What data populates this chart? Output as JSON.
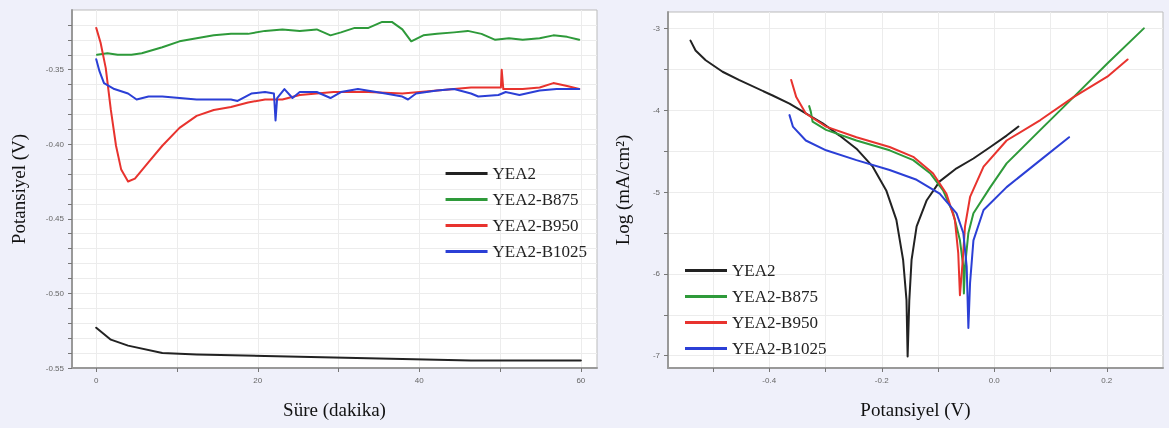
{
  "chart_data": [
    {
      "type": "line",
      "xlabel": "Süre (dakika)",
      "ylabel": "Potansiyel (V)",
      "xlim": [
        -3,
        62
      ],
      "ylim": [
        -0.55,
        -0.31
      ],
      "xticks": [
        0,
        {
          "value": 10,
          "label": null
        },
        20,
        {
          "value": 30,
          "label": null
        },
        40,
        {
          "value": 50,
          "label": null
        },
        60
      ],
      "yticks": [
        {
          "value": -0.55,
          "label": "-0.55"
        },
        {
          "value": -0.54,
          "label": null
        },
        {
          "value": -0.53,
          "label": null
        },
        {
          "value": -0.52,
          "label": null
        },
        {
          "value": -0.51,
          "label": null
        },
        {
          "value": -0.5,
          "label": "-0.50"
        },
        {
          "value": -0.49,
          "label": null
        },
        {
          "value": -0.48,
          "label": null
        },
        {
          "value": -0.47,
          "label": null
        },
        {
          "value": -0.46,
          "label": null
        },
        -0.45,
        {
          "value": -0.44,
          "label": null
        },
        {
          "value": -0.43,
          "label": null
        },
        {
          "value": -0.42,
          "label": null
        },
        {
          "value": -0.41,
          "label": null
        },
        {
          "value": -0.4,
          "label": "-0.40"
        },
        {
          "value": -0.39,
          "label": null
        },
        {
          "value": -0.38,
          "label": null
        },
        {
          "value": -0.37,
          "label": null
        },
        {
          "value": -0.36,
          "label": null
        },
        -0.35,
        {
          "value": -0.34,
          "label": null
        },
        {
          "value": -0.33,
          "label": null
        },
        {
          "value": -0.32,
          "label": null
        }
      ],
      "grid": true,
      "legend": "right",
      "marker": "none",
      "line_style": "solid",
      "series": [
        {
          "name": "YEA2",
          "color": "#222222",
          "x": [
            0,
            1.81,
            3.94,
            8.18,
            12.43,
            20.9,
            29.4,
            37.9,
            46.4,
            54.9,
            60
          ],
          "values": [
            -0.523,
            -0.531,
            -0.535,
            -0.54,
            -0.541,
            -0.542,
            -0.543,
            -0.544,
            -0.545,
            -0.545,
            -0.545
          ]
        },
        {
          "name": "YEA2-B875",
          "color": "#2e9a3a",
          "x": [
            0.1,
            1.39,
            2.66,
            4.36,
            5.64,
            8.18,
            10.31,
            12.43,
            14.55,
            16.68,
            18.8,
            20.9,
            23.05,
            25.2,
            27.3,
            29.0,
            30.3,
            32.0,
            33.7,
            35.4,
            36.6,
            37.9,
            39.0,
            40.5,
            42.2,
            44.3,
            46.0,
            47.7,
            49.4,
            51.1,
            52.8,
            54.9,
            56.6,
            58.3,
            59.8
          ],
          "values": [
            -0.34,
            -0.339,
            -0.34,
            -0.34,
            -0.339,
            -0.335,
            -0.331,
            -0.329,
            -0.327,
            -0.326,
            -0.326,
            -0.324,
            -0.323,
            -0.324,
            -0.323,
            -0.327,
            -0.325,
            -0.322,
            -0.322,
            -0.318,
            -0.318,
            -0.323,
            -0.331,
            -0.327,
            -0.326,
            -0.325,
            -0.324,
            -0.326,
            -0.33,
            -0.329,
            -0.33,
            -0.329,
            -0.327,
            -0.328,
            -0.33
          ]
        },
        {
          "name": "YEA2-B950",
          "color": "#e8332e",
          "x": [
            0,
            0.54,
            1.18,
            1.81,
            2.45,
            3.09,
            3.94,
            4.79,
            6.48,
            8.18,
            10.31,
            12.43,
            14.55,
            16.68,
            18.8,
            20.9,
            23.05,
            25.2,
            27.3,
            29.4,
            31.5,
            33.7,
            37.9,
            42.2,
            46.4,
            50.1,
            50.2,
            50.4,
            52.8,
            54.9,
            56.6,
            58.3,
            59.8
          ],
          "values": [
            -0.322,
            -0.332,
            -0.349,
            -0.377,
            -0.401,
            -0.417,
            -0.425,
            -0.423,
            -0.412,
            -0.401,
            -0.389,
            -0.381,
            -0.377,
            -0.375,
            -0.372,
            -0.37,
            -0.37,
            -0.367,
            -0.366,
            -0.365,
            -0.365,
            -0.365,
            -0.366,
            -0.364,
            -0.362,
            -0.362,
            -0.35,
            -0.363,
            -0.363,
            -0.362,
            -0.359,
            -0.361,
            -0.363
          ]
        },
        {
          "name": "YEA2-B1025",
          "color": "#2b3fd6",
          "x": [
            0,
            0.4,
            0.96,
            2.24,
            3.94,
            5.0,
            6.48,
            8.18,
            10.31,
            12.43,
            14.55,
            16.68,
            17.5,
            19.2,
            20.9,
            22.0,
            22.2,
            22.4,
            23.3,
            24.3,
            25.2,
            27.3,
            29.0,
            30.3,
            32.4,
            35.8,
            37.9,
            38.6,
            39.6,
            42.2,
            44.3,
            46.4,
            47.3,
            49.8,
            50.7,
            52.4,
            54.9,
            57.0,
            59.8
          ],
          "values": [
            -0.343,
            -0.351,
            -0.359,
            -0.363,
            -0.366,
            -0.37,
            -0.368,
            -0.368,
            -0.369,
            -0.37,
            -0.37,
            -0.37,
            -0.371,
            -0.366,
            -0.365,
            -0.366,
            -0.384,
            -0.369,
            -0.363,
            -0.369,
            -0.365,
            -0.365,
            -0.369,
            -0.365,
            -0.363,
            -0.366,
            -0.368,
            -0.37,
            -0.366,
            -0.364,
            -0.363,
            -0.366,
            -0.368,
            -0.367,
            -0.365,
            -0.367,
            -0.364,
            -0.363,
            -0.363
          ]
        }
      ]
    },
    {
      "type": "line",
      "xlabel": "Potansiyel (V)",
      "ylabel": "Log (mA/cm²)",
      "xlim": [
        -0.58,
        0.3
      ],
      "ylim": [
        -7.15,
        -2.8
      ],
      "xticks": [
        {
          "value": -0.5,
          "label": null
        },
        -0.4,
        {
          "value": -0.3,
          "label": null
        },
        -0.2,
        {
          "value": -0.1,
          "label": null
        },
        {
          "value": 0,
          "label": "0.0"
        },
        {
          "value": 0.1,
          "label": null
        },
        0.2
      ],
      "yticks": [
        -7,
        {
          "value": -6.5,
          "label": null
        },
        -6,
        {
          "value": -5.5,
          "label": null
        },
        -5,
        {
          "value": -4.5,
          "label": null
        },
        -4,
        {
          "value": -3.5,
          "label": null
        },
        -3
      ],
      "grid": true,
      "legend": "bottom left",
      "marker": "none",
      "line_style": "solid",
      "series": [
        {
          "name": "YEA2",
          "color": "#222222",
          "x": [
            -0.54,
            -0.531,
            -0.513,
            -0.483,
            -0.454,
            -0.394,
            -0.364,
            -0.335,
            -0.305,
            -0.275,
            -0.245,
            -0.216,
            -0.192,
            -0.174,
            -0.162,
            -0.156,
            -0.154,
            -0.151,
            -0.147,
            -0.138,
            -0.12,
            -0.097,
            -0.067,
            -0.037,
            -0.007,
            0.022,
            0.043
          ],
          "values": [
            -3.15,
            -3.27,
            -3.39,
            -3.53,
            -3.63,
            -3.82,
            -3.92,
            -4.04,
            -4.16,
            -4.31,
            -4.47,
            -4.69,
            -4.98,
            -5.34,
            -5.83,
            -6.32,
            -7.01,
            -6.32,
            -5.83,
            -5.42,
            -5.1,
            -4.87,
            -4.71,
            -4.59,
            -4.45,
            -4.31,
            -4.2
          ]
        },
        {
          "name": "YEA2-B875",
          "color": "#2e9a3a",
          "x": [
            -0.329,
            -0.326,
            -0.323,
            -0.299,
            -0.245,
            -0.186,
            -0.144,
            -0.114,
            -0.091,
            -0.073,
            -0.061,
            -0.055,
            -0.054,
            -0.052,
            -0.046,
            -0.037,
            -0.007,
            0.022,
            0.082,
            0.141,
            0.201,
            0.266
          ],
          "values": [
            -3.95,
            -4.02,
            -4.14,
            -4.24,
            -4.37,
            -4.49,
            -4.61,
            -4.77,
            -4.98,
            -5.26,
            -5.59,
            -5.91,
            -6.24,
            -5.91,
            -5.5,
            -5.26,
            -4.94,
            -4.65,
            -4.24,
            -3.84,
            -3.43,
            -3.0
          ]
        },
        {
          "name": "YEA2-B950",
          "color": "#e8332e",
          "x": [
            -0.361,
            -0.352,
            -0.335,
            -0.299,
            -0.245,
            -0.186,
            -0.144,
            -0.109,
            -0.085,
            -0.07,
            -0.064,
            -0.061,
            -0.056,
            -0.052,
            -0.043,
            -0.019,
            0.022,
            0.082,
            0.141,
            0.201,
            0.237
          ],
          "values": [
            -3.63,
            -3.84,
            -4.04,
            -4.2,
            -4.33,
            -4.45,
            -4.57,
            -4.77,
            -5.02,
            -5.34,
            -5.75,
            -6.26,
            -5.83,
            -5.42,
            -5.06,
            -4.69,
            -4.37,
            -4.12,
            -3.84,
            -3.59,
            -3.38
          ]
        },
        {
          "name": "YEA2-B1025",
          "color": "#2b3fd6",
          "x": [
            -0.364,
            -0.358,
            -0.335,
            -0.299,
            -0.245,
            -0.186,
            -0.138,
            -0.097,
            -0.067,
            -0.055,
            -0.049,
            -0.046,
            -0.043,
            -0.037,
            -0.019,
            0.022,
            0.082,
            0.133
          ],
          "values": [
            -4.06,
            -4.2,
            -4.37,
            -4.49,
            -4.61,
            -4.73,
            -4.85,
            -5.02,
            -5.26,
            -5.5,
            -5.91,
            -6.66,
            -6.11,
            -5.59,
            -5.22,
            -4.94,
            -4.61,
            -4.33
          ]
        }
      ]
    }
  ]
}
